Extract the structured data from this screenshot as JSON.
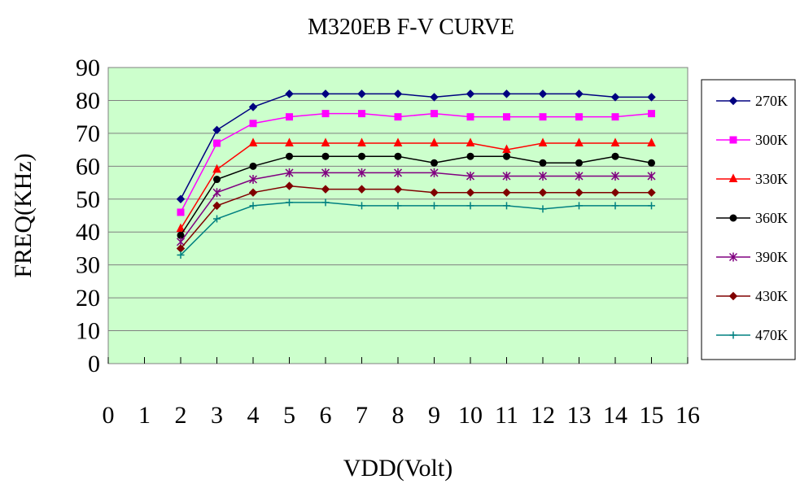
{
  "chart_data": {
    "type": "line",
    "title": "M320EB F-V CURVE",
    "xlabel": "VDD(Volt)",
    "ylabel": "FREQ(KHz)",
    "xlim": [
      0,
      16
    ],
    "ylim": [
      0,
      90
    ],
    "x_ticks": [
      "0",
      "1",
      "2",
      "3",
      "4",
      "5",
      "6",
      "7",
      "8",
      "9",
      "10",
      "11",
      "12",
      "13",
      "14",
      "15",
      "16"
    ],
    "y_ticks": [
      "0",
      "10",
      "20",
      "30",
      "40",
      "50",
      "60",
      "70",
      "80",
      "90"
    ],
    "grid": "horizontal",
    "plot_background": "#ccffcc",
    "legend_position": "right",
    "x": [
      2,
      3,
      4,
      5,
      6,
      7,
      8,
      9,
      10,
      11,
      12,
      13,
      14,
      15
    ],
    "series": [
      {
        "name": "270K",
        "color": "#000080",
        "marker": "diamond",
        "values": [
          50,
          71,
          78,
          82,
          82,
          82,
          82,
          81,
          82,
          82,
          82,
          82,
          81,
          81
        ]
      },
      {
        "name": "300K",
        "color": "#ff00ff",
        "marker": "square",
        "values": [
          46,
          67,
          73,
          75,
          76,
          76,
          75,
          76,
          75,
          75,
          75,
          75,
          75,
          76
        ]
      },
      {
        "name": "330K",
        "color": "#ff0000",
        "marker": "triangle",
        "values": [
          41,
          59,
          67,
          67,
          67,
          67,
          67,
          67,
          67,
          65,
          67,
          67,
          67,
          67
        ]
      },
      {
        "name": "360K",
        "color": "#000000",
        "marker": "circle",
        "values": [
          39,
          56,
          60,
          63,
          63,
          63,
          63,
          61,
          63,
          63,
          61,
          61,
          63,
          61
        ]
      },
      {
        "name": "390K",
        "color": "#800080",
        "marker": "star",
        "values": [
          37,
          52,
          56,
          58,
          58,
          58,
          58,
          58,
          57,
          57,
          57,
          57,
          57,
          57
        ]
      },
      {
        "name": "430K",
        "color": "#800000",
        "marker": "diamond",
        "values": [
          35,
          48,
          52,
          54,
          53,
          53,
          53,
          52,
          52,
          52,
          52,
          52,
          52,
          52
        ]
      },
      {
        "name": "470K",
        "color": "#008080",
        "marker": "plus",
        "values": [
          33,
          44,
          48,
          49,
          49,
          48,
          48,
          48,
          48,
          48,
          47,
          48,
          48,
          48
        ]
      }
    ]
  }
}
